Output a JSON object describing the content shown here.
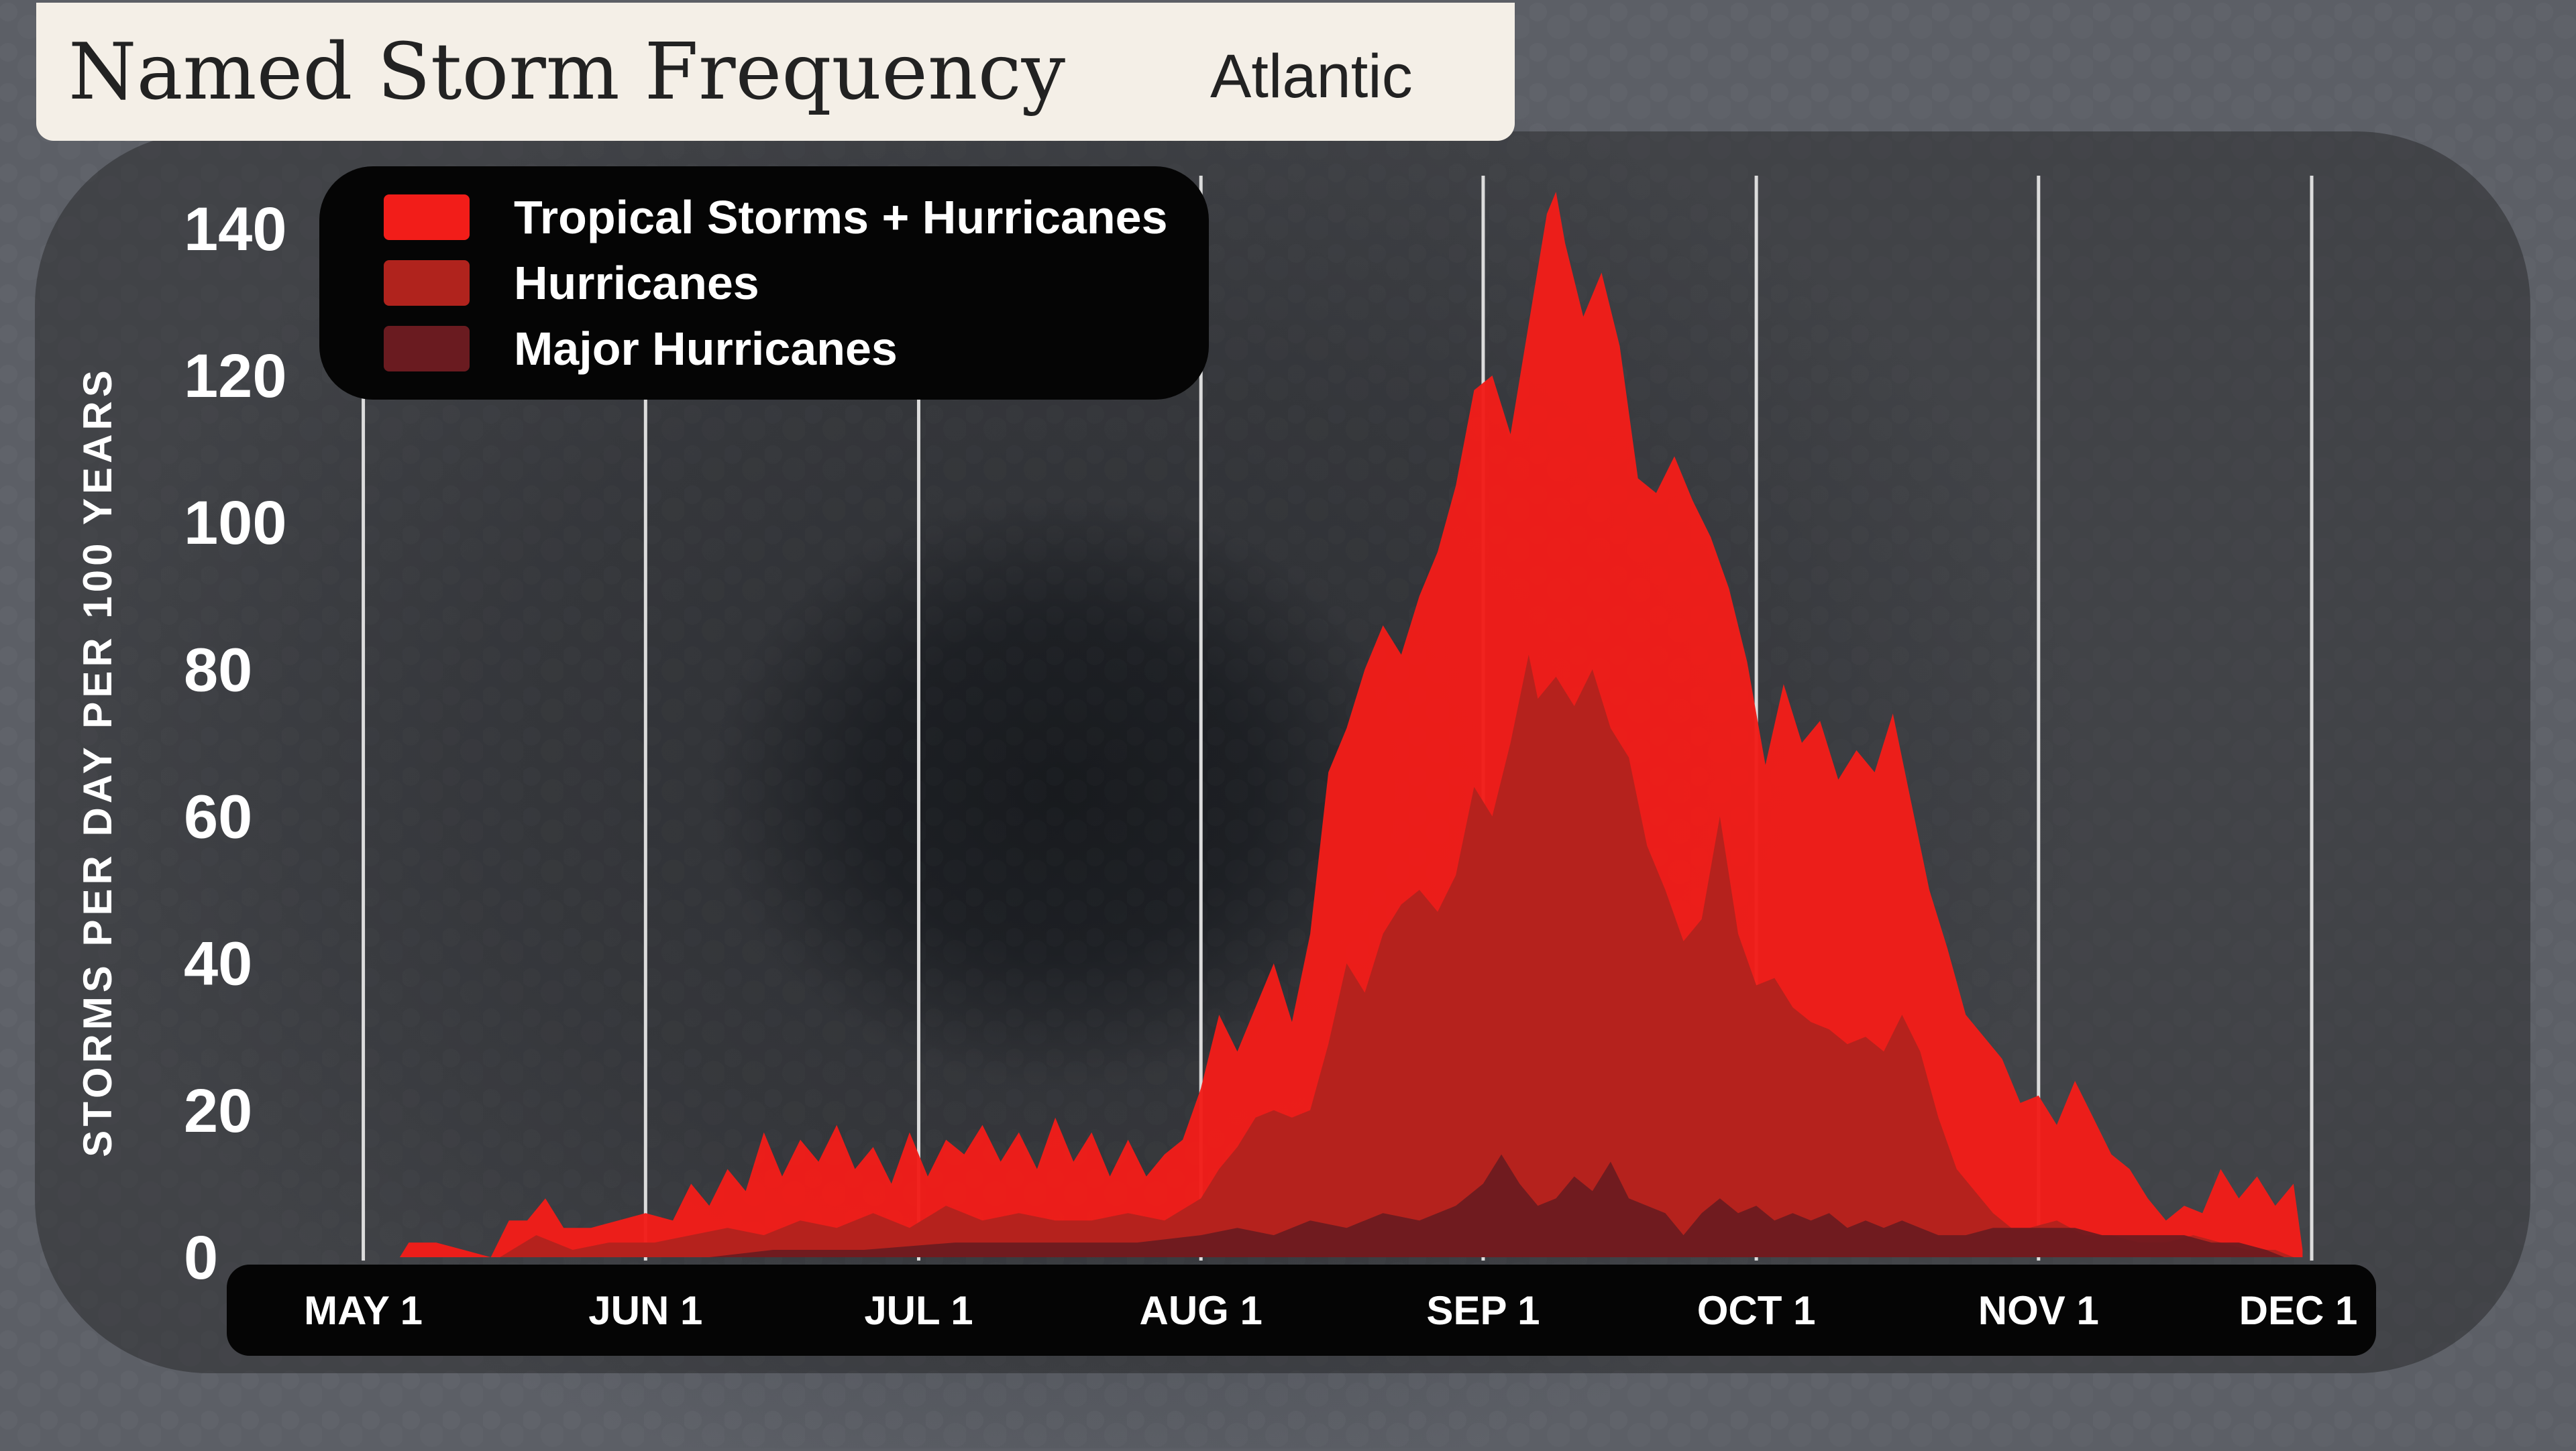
{
  "header": {
    "title": "Named Storm Frequency",
    "region": "Atlantic"
  },
  "colors": {
    "background": "#4a4d54",
    "panel": "#141416",
    "tropical_storms_hurricanes": "#f21d19",
    "hurricanes": "#b0231d",
    "major_hurricanes": "#6a1b20",
    "gridline": "#dcdcdc",
    "text": "#ffffff"
  },
  "chart_data": {
    "type": "area",
    "title": "Named Storm Frequency",
    "subtitle": "Atlantic",
    "ylabel": "STORMS PER DAY PER 100 YEARS",
    "xlabel": "",
    "ylim": [
      0,
      145
    ],
    "yticks": [
      0,
      20,
      40,
      60,
      80,
      100,
      120,
      140
    ],
    "xlim": [
      "2023-04-30",
      "2023-12-01"
    ],
    "x_ticks": [
      {
        "date": "2023-05-01",
        "label": "MAY 1"
      },
      {
        "date": "2023-06-01",
        "label": "JUN 1"
      },
      {
        "date": "2023-07-01",
        "label": "JUL 1"
      },
      {
        "date": "2023-08-01",
        "label": "AUG 1"
      },
      {
        "date": "2023-09-01",
        "label": "SEP 1"
      },
      {
        "date": "2023-10-01",
        "label": "OCT 1"
      },
      {
        "date": "2023-11-01",
        "label": "NOV 1"
      },
      {
        "date": "2023-12-01",
        "label": "DEC 1"
      }
    ],
    "grid": "vertical",
    "legend_position": "top-left",
    "series": [
      {
        "name": "Tropical Storms + Hurricanes",
        "points": [
          [
            "2023-05-05",
            0
          ],
          [
            "2023-05-06",
            2
          ],
          [
            "2023-05-09",
            2
          ],
          [
            "2023-05-12",
            1
          ],
          [
            "2023-05-15",
            0
          ],
          [
            "2023-05-17",
            5
          ],
          [
            "2023-05-19",
            5
          ],
          [
            "2023-05-21",
            8
          ],
          [
            "2023-05-23",
            4
          ],
          [
            "2023-05-26",
            4
          ],
          [
            "2023-05-29",
            5
          ],
          [
            "2023-06-01",
            6
          ],
          [
            "2023-06-04",
            5
          ],
          [
            "2023-06-06",
            10
          ],
          [
            "2023-06-08",
            7
          ],
          [
            "2023-06-10",
            12
          ],
          [
            "2023-06-12",
            9
          ],
          [
            "2023-06-14",
            17
          ],
          [
            "2023-06-16",
            11
          ],
          [
            "2023-06-18",
            16
          ],
          [
            "2023-06-20",
            13
          ],
          [
            "2023-06-22",
            18
          ],
          [
            "2023-06-24",
            12
          ],
          [
            "2023-06-26",
            15
          ],
          [
            "2023-06-28",
            10
          ],
          [
            "2023-06-30",
            17
          ],
          [
            "2023-07-02",
            11
          ],
          [
            "2023-07-04",
            16
          ],
          [
            "2023-07-06",
            14
          ],
          [
            "2023-07-08",
            18
          ],
          [
            "2023-07-10",
            13
          ],
          [
            "2023-07-12",
            17
          ],
          [
            "2023-07-14",
            12
          ],
          [
            "2023-07-16",
            19
          ],
          [
            "2023-07-18",
            13
          ],
          [
            "2023-07-20",
            17
          ],
          [
            "2023-07-22",
            11
          ],
          [
            "2023-07-24",
            16
          ],
          [
            "2023-07-26",
            11
          ],
          [
            "2023-07-28",
            14
          ],
          [
            "2023-07-30",
            16
          ],
          [
            "2023-08-01",
            23
          ],
          [
            "2023-08-03",
            33
          ],
          [
            "2023-08-05",
            28
          ],
          [
            "2023-08-07",
            34
          ],
          [
            "2023-08-09",
            40
          ],
          [
            "2023-08-11",
            32
          ],
          [
            "2023-08-13",
            44
          ],
          [
            "2023-08-15",
            66
          ],
          [
            "2023-08-17",
            72
          ],
          [
            "2023-08-19",
            80
          ],
          [
            "2023-08-21",
            86
          ],
          [
            "2023-08-23",
            82
          ],
          [
            "2023-08-25",
            90
          ],
          [
            "2023-08-27",
            96
          ],
          [
            "2023-08-29",
            105
          ],
          [
            "2023-08-31",
            118
          ],
          [
            "2023-09-02",
            120
          ],
          [
            "2023-09-04",
            112
          ],
          [
            "2023-09-06",
            127
          ],
          [
            "2023-09-08",
            142
          ],
          [
            "2023-09-09",
            145
          ],
          [
            "2023-09-10",
            138
          ],
          [
            "2023-09-12",
            128
          ],
          [
            "2023-09-14",
            134
          ],
          [
            "2023-09-16",
            124
          ],
          [
            "2023-09-18",
            106
          ],
          [
            "2023-09-20",
            104
          ],
          [
            "2023-09-22",
            109
          ],
          [
            "2023-09-24",
            103
          ],
          [
            "2023-09-26",
            98
          ],
          [
            "2023-09-28",
            91
          ],
          [
            "2023-09-30",
            81
          ],
          [
            "2023-10-02",
            67
          ],
          [
            "2023-10-04",
            78
          ],
          [
            "2023-10-06",
            70
          ],
          [
            "2023-10-08",
            73
          ],
          [
            "2023-10-10",
            65
          ],
          [
            "2023-10-12",
            69
          ],
          [
            "2023-10-14",
            66
          ],
          [
            "2023-10-16",
            74
          ],
          [
            "2023-10-18",
            62
          ],
          [
            "2023-10-20",
            50
          ],
          [
            "2023-10-22",
            42
          ],
          [
            "2023-10-24",
            33
          ],
          [
            "2023-10-26",
            30
          ],
          [
            "2023-10-28",
            27
          ],
          [
            "2023-10-30",
            21
          ],
          [
            "2023-11-01",
            22
          ],
          [
            "2023-11-03",
            18
          ],
          [
            "2023-11-05",
            24
          ],
          [
            "2023-11-07",
            19
          ],
          [
            "2023-11-09",
            14
          ],
          [
            "2023-11-11",
            12
          ],
          [
            "2023-11-13",
            8
          ],
          [
            "2023-11-15",
            5
          ],
          [
            "2023-11-17",
            7
          ],
          [
            "2023-11-19",
            6
          ],
          [
            "2023-11-21",
            12
          ],
          [
            "2023-11-23",
            8
          ],
          [
            "2023-11-25",
            11
          ],
          [
            "2023-11-27",
            7
          ],
          [
            "2023-11-29",
            10
          ],
          [
            "2023-11-30",
            1
          ]
        ]
      },
      {
        "name": "Hurricanes",
        "points": [
          [
            "2023-05-16",
            0
          ],
          [
            "2023-05-20",
            3
          ],
          [
            "2023-05-24",
            1
          ],
          [
            "2023-05-28",
            2
          ],
          [
            "2023-06-02",
            2
          ],
          [
            "2023-06-06",
            3
          ],
          [
            "2023-06-10",
            4
          ],
          [
            "2023-06-14",
            3
          ],
          [
            "2023-06-18",
            5
          ],
          [
            "2023-06-22",
            4
          ],
          [
            "2023-06-26",
            6
          ],
          [
            "2023-06-30",
            4
          ],
          [
            "2023-07-04",
            7
          ],
          [
            "2023-07-08",
            5
          ],
          [
            "2023-07-12",
            6
          ],
          [
            "2023-07-16",
            5
          ],
          [
            "2023-07-20",
            5
          ],
          [
            "2023-07-24",
            6
          ],
          [
            "2023-07-28",
            5
          ],
          [
            "2023-08-01",
            8
          ],
          [
            "2023-08-03",
            12
          ],
          [
            "2023-08-05",
            15
          ],
          [
            "2023-08-07",
            19
          ],
          [
            "2023-08-09",
            20
          ],
          [
            "2023-08-11",
            19
          ],
          [
            "2023-08-13",
            20
          ],
          [
            "2023-08-15",
            29
          ],
          [
            "2023-08-17",
            40
          ],
          [
            "2023-08-19",
            36
          ],
          [
            "2023-08-21",
            44
          ],
          [
            "2023-08-23",
            48
          ],
          [
            "2023-08-25",
            50
          ],
          [
            "2023-08-27",
            47
          ],
          [
            "2023-08-29",
            52
          ],
          [
            "2023-08-31",
            64
          ],
          [
            "2023-09-02",
            60
          ],
          [
            "2023-09-04",
            70
          ],
          [
            "2023-09-06",
            82
          ],
          [
            "2023-09-07",
            76
          ],
          [
            "2023-09-09",
            79
          ],
          [
            "2023-09-11",
            75
          ],
          [
            "2023-09-13",
            80
          ],
          [
            "2023-09-15",
            72
          ],
          [
            "2023-09-17",
            68
          ],
          [
            "2023-09-19",
            56
          ],
          [
            "2023-09-21",
            50
          ],
          [
            "2023-09-23",
            43
          ],
          [
            "2023-09-25",
            46
          ],
          [
            "2023-09-27",
            60
          ],
          [
            "2023-09-29",
            44
          ],
          [
            "2023-10-01",
            37
          ],
          [
            "2023-10-03",
            38
          ],
          [
            "2023-10-05",
            34
          ],
          [
            "2023-10-07",
            32
          ],
          [
            "2023-10-09",
            31
          ],
          [
            "2023-10-11",
            29
          ],
          [
            "2023-10-13",
            30
          ],
          [
            "2023-10-15",
            28
          ],
          [
            "2023-10-17",
            33
          ],
          [
            "2023-10-19",
            28
          ],
          [
            "2023-10-21",
            19
          ],
          [
            "2023-10-23",
            12
          ],
          [
            "2023-10-25",
            9
          ],
          [
            "2023-10-27",
            6
          ],
          [
            "2023-10-29",
            4
          ],
          [
            "2023-10-31",
            4
          ],
          [
            "2023-11-03",
            5
          ],
          [
            "2023-11-06",
            3
          ],
          [
            "2023-11-09",
            3
          ],
          [
            "2023-11-12",
            2
          ],
          [
            "2023-11-15",
            2
          ],
          [
            "2023-11-18",
            3
          ],
          [
            "2023-11-21",
            2
          ],
          [
            "2023-11-24",
            1
          ],
          [
            "2023-11-27",
            1
          ],
          [
            "2023-11-29",
            0
          ]
        ]
      },
      {
        "name": "Major Hurricanes",
        "points": [
          [
            "2023-06-08",
            0
          ],
          [
            "2023-06-15",
            1
          ],
          [
            "2023-06-25",
            1
          ],
          [
            "2023-07-05",
            2
          ],
          [
            "2023-07-15",
            2
          ],
          [
            "2023-07-25",
            2
          ],
          [
            "2023-08-01",
            3
          ],
          [
            "2023-08-05",
            4
          ],
          [
            "2023-08-09",
            3
          ],
          [
            "2023-08-13",
            5
          ],
          [
            "2023-08-17",
            4
          ],
          [
            "2023-08-21",
            6
          ],
          [
            "2023-08-25",
            5
          ],
          [
            "2023-08-29",
            7
          ],
          [
            "2023-09-01",
            10
          ],
          [
            "2023-09-03",
            14
          ],
          [
            "2023-09-05",
            10
          ],
          [
            "2023-09-07",
            7
          ],
          [
            "2023-09-09",
            8
          ],
          [
            "2023-09-11",
            11
          ],
          [
            "2023-09-13",
            9
          ],
          [
            "2023-09-15",
            13
          ],
          [
            "2023-09-17",
            8
          ],
          [
            "2023-09-19",
            7
          ],
          [
            "2023-09-21",
            6
          ],
          [
            "2023-09-23",
            3
          ],
          [
            "2023-09-25",
            6
          ],
          [
            "2023-09-27",
            8
          ],
          [
            "2023-09-29",
            6
          ],
          [
            "2023-10-01",
            7
          ],
          [
            "2023-10-03",
            5
          ],
          [
            "2023-10-05",
            6
          ],
          [
            "2023-10-07",
            5
          ],
          [
            "2023-10-09",
            6
          ],
          [
            "2023-10-11",
            4
          ],
          [
            "2023-10-13",
            5
          ],
          [
            "2023-10-15",
            4
          ],
          [
            "2023-10-17",
            5
          ],
          [
            "2023-10-19",
            4
          ],
          [
            "2023-10-21",
            3
          ],
          [
            "2023-10-24",
            3
          ],
          [
            "2023-10-27",
            4
          ],
          [
            "2023-10-30",
            4
          ],
          [
            "2023-11-02",
            4
          ],
          [
            "2023-11-05",
            4
          ],
          [
            "2023-11-08",
            3
          ],
          [
            "2023-11-11",
            3
          ],
          [
            "2023-11-14",
            3
          ],
          [
            "2023-11-17",
            3
          ],
          [
            "2023-11-20",
            2
          ],
          [
            "2023-11-23",
            2
          ],
          [
            "2023-11-26",
            1
          ],
          [
            "2023-11-28",
            0
          ]
        ]
      }
    ]
  }
}
